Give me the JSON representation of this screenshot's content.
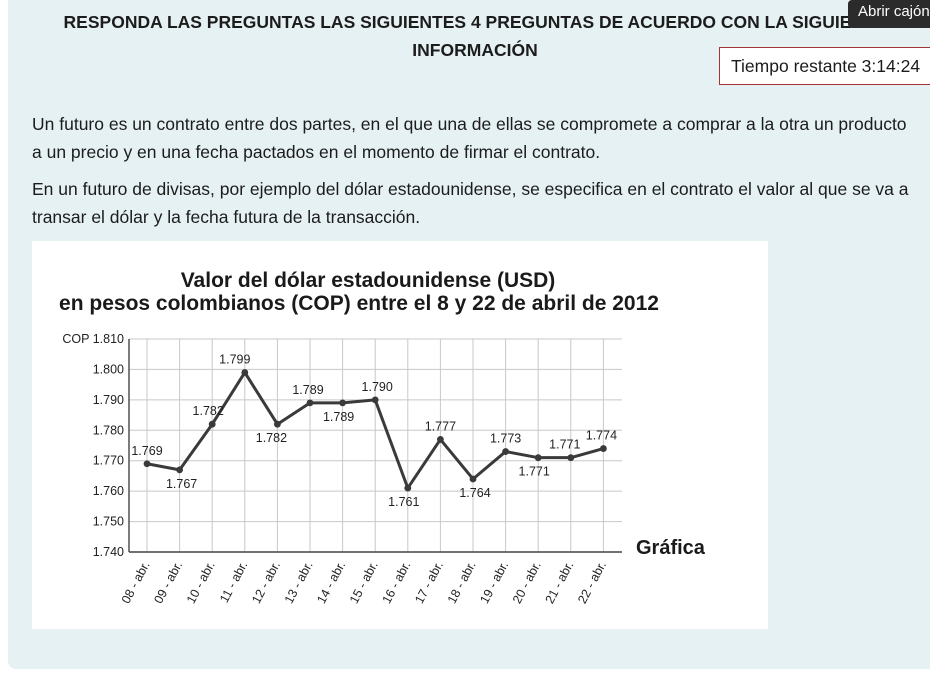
{
  "header": {
    "title": "RESPONDA LAS PREGUNTAS LAS SIGUIENTES 4 PREGUNTAS  DE ACUERDO CON LA SIGUIENTE INFORMACIÓN",
    "drawer_button": "Abrir cajón",
    "timer": "Tiempo restante 3:14:24"
  },
  "content": {
    "paragraph1": "Un futuro es un contrato entre dos partes, en el que una de ellas se compromete a comprar a la otra un producto a un precio y en una fecha pactados en el momento de firmar el contrato.",
    "paragraph2": "En un futuro de divisas, por ejemplo del dólar estadounidense, se especifica en el contrato el valor al que se va a transar el dólar y la fecha futura de la transacción."
  },
  "chart_data": {
    "type": "line",
    "title_line1": "Valor del dólar estadounidense (USD)",
    "title_line2": "en pesos colombianos (COP) entre el 8 y 22 de abril de 2012",
    "caption": "Gráfica",
    "categories": [
      "08 - abr.",
      "09 - abr.",
      "10 - abr.",
      "11 - abr.",
      "12 - abr.",
      "13 - abr.",
      "14 - abr.",
      "15 - abr.",
      "16 - abr.",
      "17 - abr.",
      "18 - abr.",
      "19 - abr.",
      "20 - abr.",
      "21 - abr.",
      "22 - abr."
    ],
    "values": [
      1769,
      1767,
      1782,
      1799,
      1782,
      1789,
      1789,
      1790,
      1761,
      1777,
      1764,
      1773,
      1771,
      1771,
      1774
    ],
    "data_labels": [
      "1.769",
      "1.767",
      "1.782",
      "1.799",
      "1.782",
      "1.789",
      "1.789",
      "1.790",
      "1.761",
      "1.777",
      "1.764",
      "1.773",
      "1.771",
      "1.771",
      "1.774"
    ],
    "y_ticks": [
      1740,
      1750,
      1760,
      1770,
      1780,
      1790,
      1800,
      1810
    ],
    "y_tick_labels": [
      "1.740",
      "1.750",
      "1.760",
      "1.770",
      "1.780",
      "1.790",
      "1.800",
      "COP 1.810"
    ],
    "ylim": [
      1740,
      1810
    ],
    "grid": true,
    "line_color": "#3a3a3a",
    "grid_color": "#c8c8c8"
  }
}
